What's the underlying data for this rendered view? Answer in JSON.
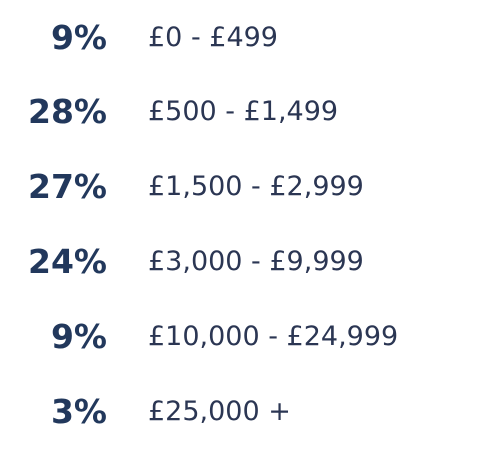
{
  "rows": [
    {
      "percent": "9%",
      "range": "£0 - £499"
    },
    {
      "percent": "28%",
      "range": "£500 - £1,499"
    },
    {
      "percent": "27%",
      "range": "£1,500 - £2,999"
    },
    {
      "percent": "24%",
      "range": "£3,000 - £9,999"
    },
    {
      "percent": "9%",
      "range": "£10,000 - £24,999"
    },
    {
      "percent": "3%",
      "range": "£25,000 +"
    }
  ]
}
